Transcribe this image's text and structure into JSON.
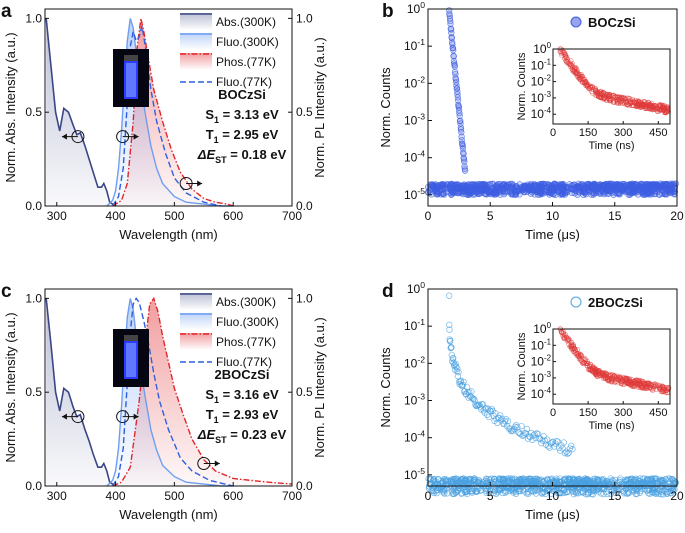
{
  "colors": {
    "abs": "#3b4686",
    "fluo300": "#6e9ef0",
    "phos": "#e0262a",
    "fluo77": "#2f5fe0",
    "decay_b": "#3a5fe0",
    "decay_d": "#4aa0e0",
    "inset_decay": "#e03a3a"
  },
  "chart_data": [
    {
      "panel": "a",
      "type": "line",
      "compound": "BOCzSi",
      "values_text": [
        "S",
        "1",
        " = 3.13 eV",
        "T",
        "1",
        " = 2.95 eV",
        "ΔE",
        "ST",
        " = 0.18 eV"
      ],
      "xlabel": "Wavelength (nm)",
      "ylabel_left": "Norm. Abs. Intensity (a.u.)",
      "ylabel_right": "Norm. PL Intensity (a.u.)",
      "xlim": [
        280,
        700
      ],
      "ylim": [
        0,
        1.05
      ],
      "xticks": [
        "300",
        "400",
        "500",
        "600",
        "700"
      ],
      "yticks_left": [
        "0.0",
        "0.5",
        "1.0"
      ],
      "yticks_right": [
        "0.0",
        "0.5",
        "1.0"
      ],
      "legend": [
        "Abs.(300K)",
        "Fluo.(300K)",
        "Phos.(77K)",
        "Fluo.(77K)"
      ],
      "series": [
        {
          "name": "Abs.(300K)",
          "x": [
            282,
            290,
            298,
            305,
            312,
            320,
            328,
            334,
            340,
            348,
            355,
            362,
            370,
            376,
            380,
            385,
            390,
            395,
            400
          ],
          "values": [
            1.0,
            0.75,
            0.5,
            0.4,
            0.52,
            0.5,
            0.43,
            0.38,
            0.39,
            0.32,
            0.25,
            0.18,
            0.1,
            0.1,
            0.12,
            0.08,
            0.02,
            0.01,
            0.0
          ]
        },
        {
          "name": "Fluo.(300K)",
          "x": [
            385,
            395,
            400,
            405,
            410,
            415,
            420,
            425,
            430,
            435,
            440,
            450,
            460,
            470,
            480,
            500,
            520,
            550,
            580,
            600
          ],
          "values": [
            0.0,
            0.03,
            0.08,
            0.2,
            0.4,
            0.65,
            0.88,
            1.0,
            0.95,
            0.82,
            0.7,
            0.5,
            0.32,
            0.2,
            0.12,
            0.05,
            0.02,
            0.01,
            0.0,
            0.0
          ]
        },
        {
          "name": "Phos.(77K)",
          "x": [
            395,
            410,
            420,
            430,
            437,
            443,
            448,
            455,
            465,
            480,
            495,
            510,
            530,
            550,
            570,
            590,
            600
          ],
          "values": [
            0.0,
            0.03,
            0.12,
            0.45,
            0.85,
            1.0,
            0.93,
            0.8,
            0.62,
            0.45,
            0.3,
            0.18,
            0.09,
            0.04,
            0.02,
            0.01,
            0.0
          ]
        },
        {
          "name": "Fluo.(77K)",
          "x": [
            395,
            405,
            413,
            420,
            425,
            430,
            435,
            440,
            445,
            452,
            460,
            470,
            485,
            500,
            520,
            550,
            580
          ],
          "values": [
            0.0,
            0.05,
            0.2,
            0.55,
            0.85,
            0.93,
            0.88,
            0.9,
            0.96,
            0.82,
            0.62,
            0.45,
            0.28,
            0.15,
            0.07,
            0.02,
            0.0
          ]
        }
      ]
    },
    {
      "panel": "b",
      "type": "scatter",
      "legend": [
        "BOCzSi"
      ],
      "xlabel": "Time (μs)",
      "ylabel": "Norm. Counts",
      "xlim": [
        0,
        20
      ],
      "ylim_log10": [
        -5.3,
        0
      ],
      "xticks": [
        "0",
        "5",
        "10",
        "15",
        "20"
      ],
      "yticks": [
        "10-5",
        "10-4",
        "10-3",
        "10-2",
        "10-1",
        "100"
      ],
      "baseline_range": [
        1e-05,
        2e-05
      ],
      "rise_time": 1.6,
      "inset": {
        "xlabel": "Time (ns)",
        "ylabel": "Norm. Counts",
        "xlim": [
          0,
          500
        ],
        "ylim_log10": [
          -4.6,
          0
        ],
        "xticks": [
          "0",
          "150",
          "300",
          "450"
        ],
        "yticks": [
          "10-4",
          "10-3",
          "10-2",
          "10-1",
          "100"
        ]
      }
    },
    {
      "panel": "c",
      "type": "line",
      "compound": "2BOCzSi",
      "values_text": [
        "S",
        "1",
        " = 3.16 eV",
        "T",
        "1",
        " = 2.93 eV",
        "ΔE",
        "ST",
        " = 0.23 eV"
      ],
      "xlabel": "Wavelength (nm)",
      "ylabel_left": "Norm. Abs. Intensity (a.u.)",
      "ylabel_right": "Norm. PL Intensity (a.u.)",
      "xlim": [
        280,
        700
      ],
      "ylim": [
        0,
        1.05
      ],
      "xticks": [
        "300",
        "400",
        "500",
        "600",
        "700"
      ],
      "yticks_left": [
        "0.0",
        "0.5",
        "1.0"
      ],
      "yticks_right": [
        "0.0",
        "0.5",
        "1.0"
      ],
      "legend": [
        "Abs.(300K)",
        "Fluo.(300K)",
        "Phos.(77K)",
        "Fluo.(77K)"
      ],
      "series": [
        {
          "name": "Abs.(300K)",
          "x": [
            282,
            290,
            298,
            305,
            312,
            320,
            328,
            334,
            340,
            348,
            355,
            362,
            370,
            376,
            380,
            385,
            390,
            395,
            400
          ],
          "values": [
            1.0,
            0.76,
            0.5,
            0.4,
            0.52,
            0.5,
            0.42,
            0.37,
            0.38,
            0.3,
            0.24,
            0.17,
            0.1,
            0.1,
            0.12,
            0.08,
            0.02,
            0.01,
            0.0
          ]
        },
        {
          "name": "Fluo.(300K)",
          "x": [
            385,
            395,
            400,
            405,
            410,
            415,
            420,
            425,
            430,
            435,
            440,
            450,
            460,
            470,
            480,
            500,
            520,
            550,
            580,
            600
          ],
          "values": [
            0.0,
            0.03,
            0.08,
            0.2,
            0.42,
            0.68,
            0.9,
            1.0,
            0.94,
            0.8,
            0.68,
            0.48,
            0.3,
            0.19,
            0.11,
            0.05,
            0.02,
            0.01,
            0.0,
            0.0
          ]
        },
        {
          "name": "Phos.(77K)",
          "x": [
            395,
            410,
            425,
            440,
            450,
            458,
            465,
            472,
            480,
            490,
            500,
            515,
            530,
            550,
            570,
            600,
            630,
            660,
            700
          ],
          "values": [
            0.0,
            0.02,
            0.1,
            0.45,
            0.75,
            0.97,
            1.0,
            0.93,
            0.8,
            0.66,
            0.52,
            0.38,
            0.25,
            0.14,
            0.08,
            0.04,
            0.03,
            0.02,
            0.01
          ]
        },
        {
          "name": "Fluo.(77K)",
          "x": [
            395,
            405,
            413,
            420,
            425,
            430,
            435,
            440,
            448,
            455,
            465,
            475,
            490,
            510,
            530,
            560,
            600
          ],
          "values": [
            0.0,
            0.05,
            0.2,
            0.55,
            0.82,
            0.97,
            1.0,
            0.98,
            0.88,
            0.78,
            0.6,
            0.45,
            0.3,
            0.15,
            0.08,
            0.03,
            0.0
          ]
        }
      ]
    },
    {
      "panel": "d",
      "type": "scatter",
      "legend": [
        "2BOCzSi"
      ],
      "xlabel": "Time (μs)",
      "ylabel": "Norm. Counts",
      "xlim": [
        0,
        20
      ],
      "ylim_log10": [
        -5.3,
        0
      ],
      "xticks": [
        "0",
        "5",
        "10",
        "15",
        "20"
      ],
      "yticks": [
        "10-5",
        "10-4",
        "10-3",
        "10-2",
        "10-1",
        "100"
      ],
      "baseline_range": [
        3e-06,
        8e-06
      ],
      "rise_time": 1.6,
      "inset": {
        "xlabel": "Time (ns)",
        "ylabel": "Norm. Counts",
        "xlim": [
          0,
          500
        ],
        "ylim_log10": [
          -4.6,
          0
        ],
        "xticks": [
          "0",
          "150",
          "300",
          "450"
        ],
        "yticks": [
          "10-4",
          "10-3",
          "10-2",
          "10-1",
          "100"
        ]
      }
    }
  ]
}
